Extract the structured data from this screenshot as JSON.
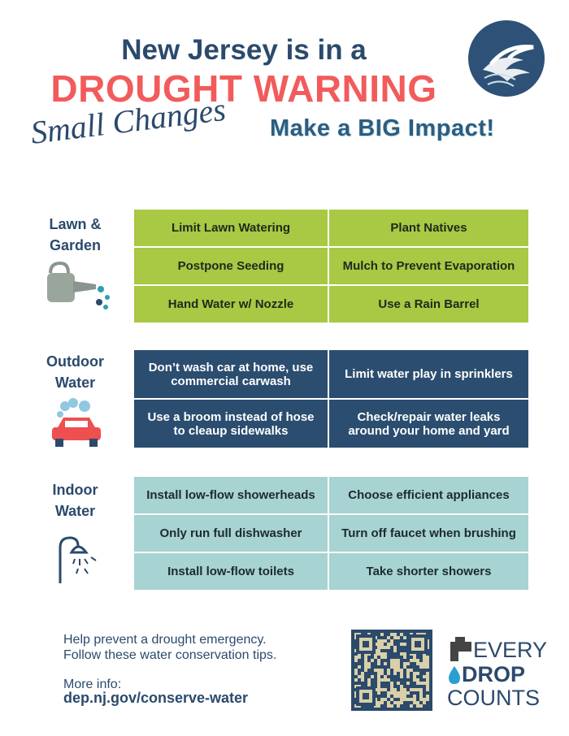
{
  "header": {
    "title_line1": "New Jersey is in a",
    "title_line2": "DROUGHT WARNING",
    "tagline_script": "Small Changes",
    "tagline": "Make a BIG Impact!"
  },
  "sections": [
    {
      "label": [
        "Lawn &",
        "Garden"
      ],
      "rows": [
        [
          "Limit Lawn Watering",
          "Plant Natives"
        ],
        [
          "Postpone Seeding",
          "Mulch to Prevent Evaporation"
        ],
        [
          "Hand Water w/ Nozzle",
          "Use a Rain Barrel"
        ]
      ]
    },
    {
      "label": [
        "Outdoor",
        "Water"
      ],
      "rows": [
        [
          "Don’t wash car at home, use commercial carwash",
          "Limit water play in sprinklers"
        ],
        [
          "Use a broom instead of hose to cleaup sidewalks",
          "Check/repair water leaks around your home and yard"
        ]
      ]
    },
    {
      "label": [
        "Indoor",
        "Water"
      ],
      "rows": [
        [
          "Install low-flow showerheads",
          "Choose efficient appliances"
        ],
        [
          "Only run full dishwasher",
          "Turn off faucet when brushing"
        ],
        [
          "Install low-flow toilets",
          "Take shorter showers"
        ]
      ]
    }
  ],
  "footer": {
    "lines": [
      "Help prevent a drought emergency.",
      "Follow these water conservation tips."
    ],
    "more_info": "More info:",
    "url": "dep.nj.gov/conserve-water",
    "logo": [
      "EVERY",
      "DROP",
      "COUNTS"
    ]
  }
}
